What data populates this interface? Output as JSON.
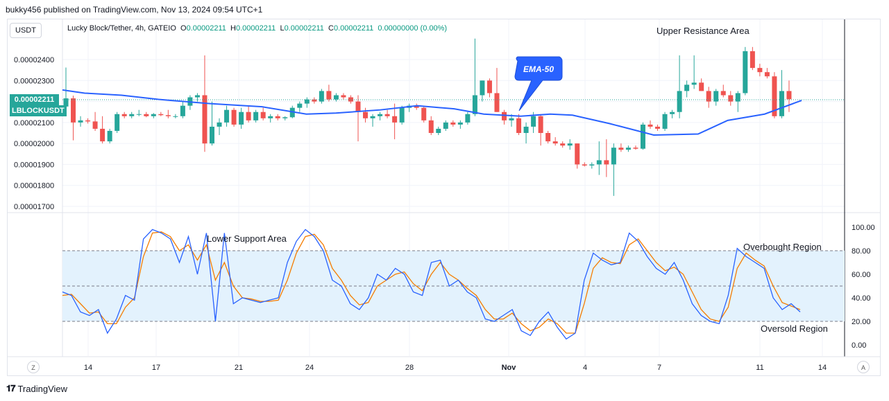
{
  "header": {
    "publisher": "bukky456 published on TradingView.com, Nov 13, 2024 09:54 UTC+1"
  },
  "currency_button": "USDT",
  "legend": {
    "title": "Lucky Block/Tether, 4h, GATEIO",
    "o_label": "O",
    "o_value": "0.00002211",
    "h_label": "H",
    "h_value": "0.00002211",
    "l_label": "L",
    "l_value": "0.00002211",
    "c_label": "C",
    "c_value": "0.00002211",
    "change": "0.00000000 (0.00%)"
  },
  "price_tag": {
    "value": "0.00002211",
    "symbol": "LBLOCKUSDT"
  },
  "annotations": {
    "upper_resistance": "Upper Resistance Area",
    "lower_support": "Lower Support Area",
    "ema_callout": "EMA-50",
    "overbought": "Overbought Region",
    "oversold": "Oversold Region"
  },
  "footer": {
    "brand": "TradingView",
    "left_button": "Z",
    "right_button": "A"
  },
  "colors": {
    "up": "#26a69a",
    "down": "#ef5350",
    "ema": "#2962ff",
    "stoch_k": "#2962ff",
    "stoch_d": "#f57c00",
    "band": "#e3f2fd",
    "callout": "#2962ff"
  },
  "chart_data": [
    {
      "type": "candlestick",
      "pair": "Lucky Block/Tether",
      "timeframe": "4h",
      "y_tick_labels": [
        "0.00002400",
        "0.00002300",
        "0.00002200",
        "0.00002100",
        "0.00002000",
        "0.00001900",
        "0.00001800",
        "0.00001700"
      ],
      "x_tick_labels": [
        "14",
        "17",
        "21",
        "24",
        "28",
        "Nov",
        "4",
        "7",
        "11",
        "14"
      ],
      "ylim": [
        1.67e-05,
        2.53e-05
      ],
      "ema50": [
        [
          0,
          2.255e-05
        ],
        [
          0.03,
          2.24e-05
        ],
        [
          0.08,
          2.23e-05
        ],
        [
          0.13,
          2.21e-05
        ],
        [
          0.2,
          2.19e-05
        ],
        [
          0.27,
          2.175e-05
        ],
        [
          0.33,
          2.14e-05
        ],
        [
          0.37,
          2.145e-05
        ],
        [
          0.43,
          2.16e-05
        ],
        [
          0.48,
          2.18e-05
        ],
        [
          0.53,
          2.165e-05
        ],
        [
          0.57,
          2.14e-05
        ],
        [
          0.62,
          2.13e-05
        ],
        [
          0.66,
          2.14e-05
        ],
        [
          0.69,
          2.135e-05
        ],
        [
          0.74,
          2.095e-05
        ],
        [
          0.8,
          2.04e-05
        ],
        [
          0.86,
          2.045e-05
        ],
        [
          0.9,
          2.11e-05
        ],
        [
          0.95,
          2.14e-05
        ],
        [
          1.0,
          2.205e-05
        ]
      ],
      "candles": [
        [
          0,
          2.176,
          2.362,
          2.176,
          2.215
        ],
        [
          0.5,
          2.215,
          2.228,
          2.015,
          2.1
        ],
        [
          1,
          2.1,
          2.13,
          2.08,
          2.11
        ],
        [
          1.5,
          2.11,
          2.12,
          2.095,
          2.105
        ],
        [
          2,
          2.105,
          2.15,
          2.06,
          2.07
        ],
        [
          2.5,
          2.07,
          2.13,
          2.0,
          2.01
        ],
        [
          3,
          2.01,
          2.07,
          2.0,
          2.06
        ],
        [
          3.5,
          2.06,
          2.15,
          2.05,
          2.14
        ],
        [
          4,
          2.14,
          2.15,
          2.12,
          2.13
        ],
        [
          4.5,
          2.13,
          2.15,
          2.12,
          2.14
        ],
        [
          5,
          2.14,
          2.16,
          2.13,
          2.14
        ],
        [
          5.5,
          2.14,
          2.15,
          2.125,
          2.13
        ],
        [
          6,
          2.13,
          2.145,
          2.12,
          2.14
        ],
        [
          6.5,
          2.14,
          2.15,
          2.13,
          2.135
        ],
        [
          7,
          2.135,
          2.16,
          2.12,
          2.13
        ],
        [
          7.5,
          2.13,
          2.14,
          2.12,
          2.13
        ],
        [
          8,
          2.13,
          2.2,
          2.12,
          2.18
        ],
        [
          8.5,
          2.18,
          2.23,
          2.16,
          2.22
        ],
        [
          9,
          2.22,
          2.24,
          2.2,
          2.23
        ],
        [
          9.5,
          2.23,
          2.42,
          1.96,
          2.0
        ],
        [
          10,
          2.0,
          2.2,
          1.99,
          2.08
        ],
        [
          10.5,
          2.08,
          2.12,
          2.04,
          2.1
        ],
        [
          11,
          2.1,
          2.18,
          2.08,
          2.16
        ],
        [
          11.5,
          2.16,
          2.17,
          2.08,
          2.09
        ],
        [
          12,
          2.09,
          2.17,
          2.07,
          2.15
        ],
        [
          12.5,
          2.15,
          2.18,
          2.1,
          2.11
        ],
        [
          13,
          2.11,
          2.16,
          2.1,
          2.15
        ],
        [
          13.5,
          2.15,
          2.17,
          2.11,
          2.12
        ],
        [
          14,
          2.12,
          2.14,
          2.1,
          2.13
        ],
        [
          14.5,
          2.13,
          2.14,
          2.11,
          2.12
        ],
        [
          15,
          2.12,
          2.13,
          2.11,
          2.125
        ],
        [
          15.5,
          2.125,
          2.18,
          2.12,
          2.17
        ],
        [
          16,
          2.17,
          2.2,
          2.15,
          2.19
        ],
        [
          16.5,
          2.19,
          2.22,
          2.17,
          2.21
        ],
        [
          17,
          2.21,
          2.22,
          2.19,
          2.2
        ],
        [
          17.5,
          2.2,
          2.26,
          2.19,
          2.25
        ],
        [
          18,
          2.25,
          2.28,
          2.2,
          2.21
        ],
        [
          18.5,
          2.21,
          2.24,
          2.2,
          2.23
        ],
        [
          19,
          2.23,
          2.24,
          2.21,
          2.22
        ],
        [
          19.5,
          2.22,
          2.23,
          2.19,
          2.2
        ],
        [
          20,
          2.2,
          2.23,
          2.01,
          2.15
        ],
        [
          20.5,
          2.15,
          2.17,
          2.1,
          2.12
        ],
        [
          21,
          2.12,
          2.14,
          2.08,
          2.13
        ],
        [
          21.5,
          2.13,
          2.15,
          2.11,
          2.14
        ],
        [
          22,
          2.14,
          2.16,
          2.12,
          2.13
        ],
        [
          22.5,
          2.13,
          2.19,
          2.02,
          2.1
        ],
        [
          23,
          2.1,
          2.18,
          2.09,
          2.17
        ],
        [
          23.5,
          2.17,
          2.19,
          2.15,
          2.18
        ],
        [
          24,
          2.18,
          2.19,
          2.16,
          2.17
        ],
        [
          24.5,
          2.17,
          2.18,
          2.1,
          2.11
        ],
        [
          25,
          2.11,
          2.13,
          2.04,
          2.05
        ],
        [
          25.5,
          2.05,
          2.08,
          2.04,
          2.07
        ],
        [
          26,
          2.07,
          2.11,
          2.06,
          2.1
        ],
        [
          26.5,
          2.1,
          2.11,
          2.08,
          2.09
        ],
        [
          27,
          2.09,
          2.11,
          2.07,
          2.1
        ],
        [
          27.5,
          2.1,
          2.15,
          2.09,
          2.14
        ],
        [
          28,
          2.14,
          2.5,
          2.13,
          2.23
        ],
        [
          28.5,
          2.23,
          2.3,
          2.2,
          2.3
        ],
        [
          29,
          2.3,
          2.31,
          2.22,
          2.24
        ],
        [
          29.5,
          2.24,
          2.36,
          2.15,
          2.15
        ],
        [
          30,
          2.15,
          2.16,
          2.09,
          2.11
        ],
        [
          30.5,
          2.11,
          2.14,
          2.08,
          2.12
        ],
        [
          31,
          2.12,
          2.14,
          2.04,
          2.05
        ],
        [
          31.5,
          2.05,
          2.1,
          2.0,
          2.08
        ],
        [
          32,
          2.08,
          2.15,
          2.05,
          2.13
        ],
        [
          32.5,
          2.13,
          2.14,
          1.99,
          2.05
        ],
        [
          33,
          2.05,
          2.06,
          2.0,
          2.01
        ],
        [
          33.5,
          2.01,
          2.03,
          1.99,
          2.0
        ],
        [
          34,
          2.0,
          2.01,
          1.98,
          1.99
        ],
        [
          34.5,
          1.99,
          2.02,
          1.97,
          2.0
        ],
        [
          35,
          2.0,
          2.0,
          1.88,
          1.9
        ],
        [
          35.5,
          1.9,
          1.91,
          1.89,
          1.895
        ],
        [
          36,
          1.895,
          1.91,
          1.88,
          1.9
        ],
        [
          36.5,
          1.9,
          2.01,
          1.85,
          1.92
        ],
        [
          37,
          1.92,
          2.02,
          1.84,
          1.9
        ],
        [
          37.5,
          1.9,
          2.0,
          1.75,
          1.98
        ],
        [
          38,
          1.98,
          2.0,
          1.96,
          1.97
        ],
        [
          38.5,
          1.97,
          1.99,
          1.96,
          1.98
        ],
        [
          39,
          1.98,
          1.99,
          1.97,
          1.975
        ],
        [
          39.5,
          1.975,
          2.1,
          1.97,
          2.09
        ],
        [
          40,
          2.09,
          2.11,
          2.07,
          2.08
        ],
        [
          40.5,
          2.08,
          2.09,
          2.06,
          2.07
        ],
        [
          41,
          2.07,
          2.15,
          2.06,
          2.14
        ],
        [
          41.5,
          2.14,
          2.16,
          2.12,
          2.15
        ],
        [
          42,
          2.15,
          2.42,
          2.12,
          2.25
        ],
        [
          42.5,
          2.25,
          2.3,
          2.22,
          2.28
        ],
        [
          43,
          2.28,
          2.42,
          2.26,
          2.29
        ],
        [
          43.5,
          2.29,
          2.31,
          2.25,
          2.25
        ],
        [
          44,
          2.25,
          2.27,
          2.17,
          2.2
        ],
        [
          44.5,
          2.2,
          2.26,
          2.18,
          2.25
        ],
        [
          45,
          2.25,
          2.28,
          2.22,
          2.23
        ],
        [
          45.5,
          2.23,
          2.25,
          2.18,
          2.2
        ],
        [
          46,
          2.2,
          2.25,
          2.15,
          2.24
        ],
        [
          46.5,
          2.24,
          2.46,
          2.23,
          2.44
        ],
        [
          47,
          2.44,
          2.46,
          2.35,
          2.36
        ],
        [
          47.5,
          2.36,
          2.38,
          2.32,
          2.34
        ],
        [
          48,
          2.34,
          2.36,
          2.31,
          2.32
        ],
        [
          48.5,
          2.32,
          2.34,
          2.12,
          2.13
        ],
        [
          49,
          2.13,
          2.35,
          2.12,
          2.25
        ],
        [
          49.5,
          2.25,
          2.3,
          2.15,
          2.211
        ]
      ]
    },
    {
      "type": "line",
      "indicator": "Stochastic",
      "y_tick_labels": [
        "100.00",
        "80.00",
        "60.00",
        "40.00",
        "20.00",
        "0.00"
      ],
      "ylim": [
        0,
        100
      ],
      "bands": [
        20,
        50,
        80
      ],
      "series": [
        {
          "values": [
            45,
            42,
            28,
            25,
            30,
            10,
            22,
            42,
            38,
            90,
            98,
            95,
            90,
            70,
            92,
            60,
            95,
            20,
            95,
            35,
            40,
            38,
            36,
            38,
            40,
            70,
            88,
            98,
            92,
            80,
            55,
            50,
            35,
            30,
            40,
            60,
            55,
            65,
            60,
            45,
            42,
            70,
            72,
            50,
            55,
            45,
            40,
            22,
            20,
            25,
            30,
            12,
            8,
            20,
            28,
            15,
            5,
            10,
            55,
            78,
            72,
            68,
            70,
            95,
            88,
            75,
            65,
            60,
            70,
            55,
            35,
            25,
            20,
            18,
            42,
            82,
            75,
            70,
            65,
            40,
            30,
            35,
            28
          ]
        },
        {
          "values": [
            42,
            43,
            35,
            27,
            28,
            18,
            18,
            32,
            40,
            75,
            95,
            96,
            92,
            80,
            85,
            72,
            85,
            55,
            70,
            50,
            40,
            39,
            37,
            37,
            38,
            55,
            78,
            92,
            94,
            85,
            65,
            55,
            42,
            34,
            36,
            50,
            55,
            60,
            62,
            52,
            46,
            60,
            70,
            60,
            55,
            48,
            42,
            30,
            22,
            22,
            27,
            18,
            12,
            15,
            22,
            18,
            10,
            10,
            35,
            65,
            74,
            70,
            69,
            85,
            90,
            80,
            70,
            63,
            66,
            60,
            45,
            30,
            22,
            20,
            32,
            65,
            78,
            72,
            67,
            50,
            36,
            33,
            30
          ]
        }
      ]
    }
  ]
}
